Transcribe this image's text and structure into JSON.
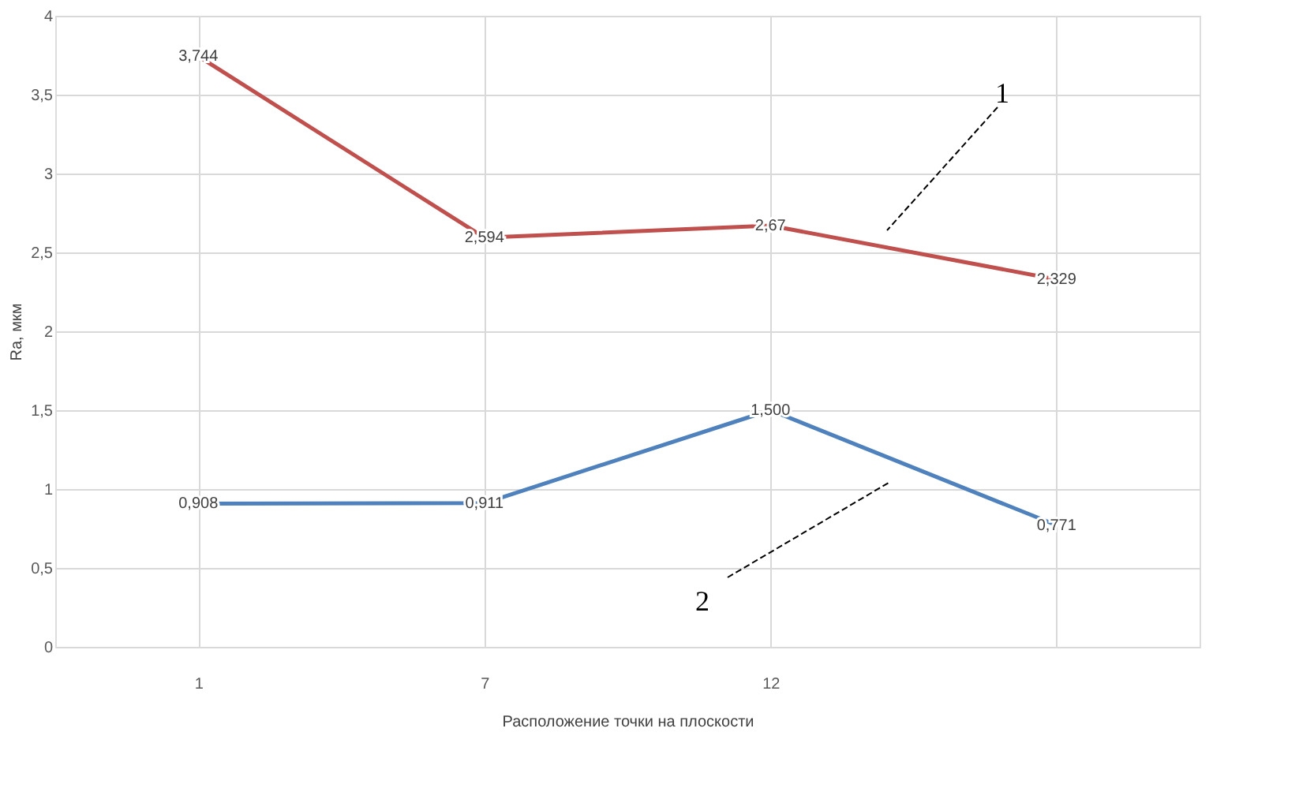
{
  "chart_data": {
    "type": "line",
    "xlabel": "Расположение точки на плоскости",
    "ylabel": "Ra, мкм",
    "categories": [
      "1",
      "7",
      "12",
      null
    ],
    "series": [
      {
        "color": "#c0504d",
        "values": [
          3.744,
          2.594,
          2.67,
          2.329
        ],
        "value_labels": [
          "3,744",
          "2,594",
          "2,67",
          "2,329"
        ]
      },
      {
        "color": "#4f81bd",
        "values": [
          0.908,
          0.911,
          1.5,
          0.771
        ],
        "value_labels": [
          "0,908",
          "0,911",
          "1,500",
          "0,771"
        ]
      }
    ],
    "ylim": [
      0,
      4
    ],
    "yticks": [
      0,
      {
        "value": 0.5,
        "label": "0,5"
      },
      1,
      {
        "value": 1.5,
        "label": "1,5"
      },
      2,
      {
        "value": 2.5,
        "label": "2,5"
      },
      3,
      {
        "value": 3.5,
        "label": "3,5"
      },
      4
    ],
    "annotations": [
      "1",
      "2"
    ],
    "grid": true,
    "marker": "none",
    "line_style": "solid"
  }
}
